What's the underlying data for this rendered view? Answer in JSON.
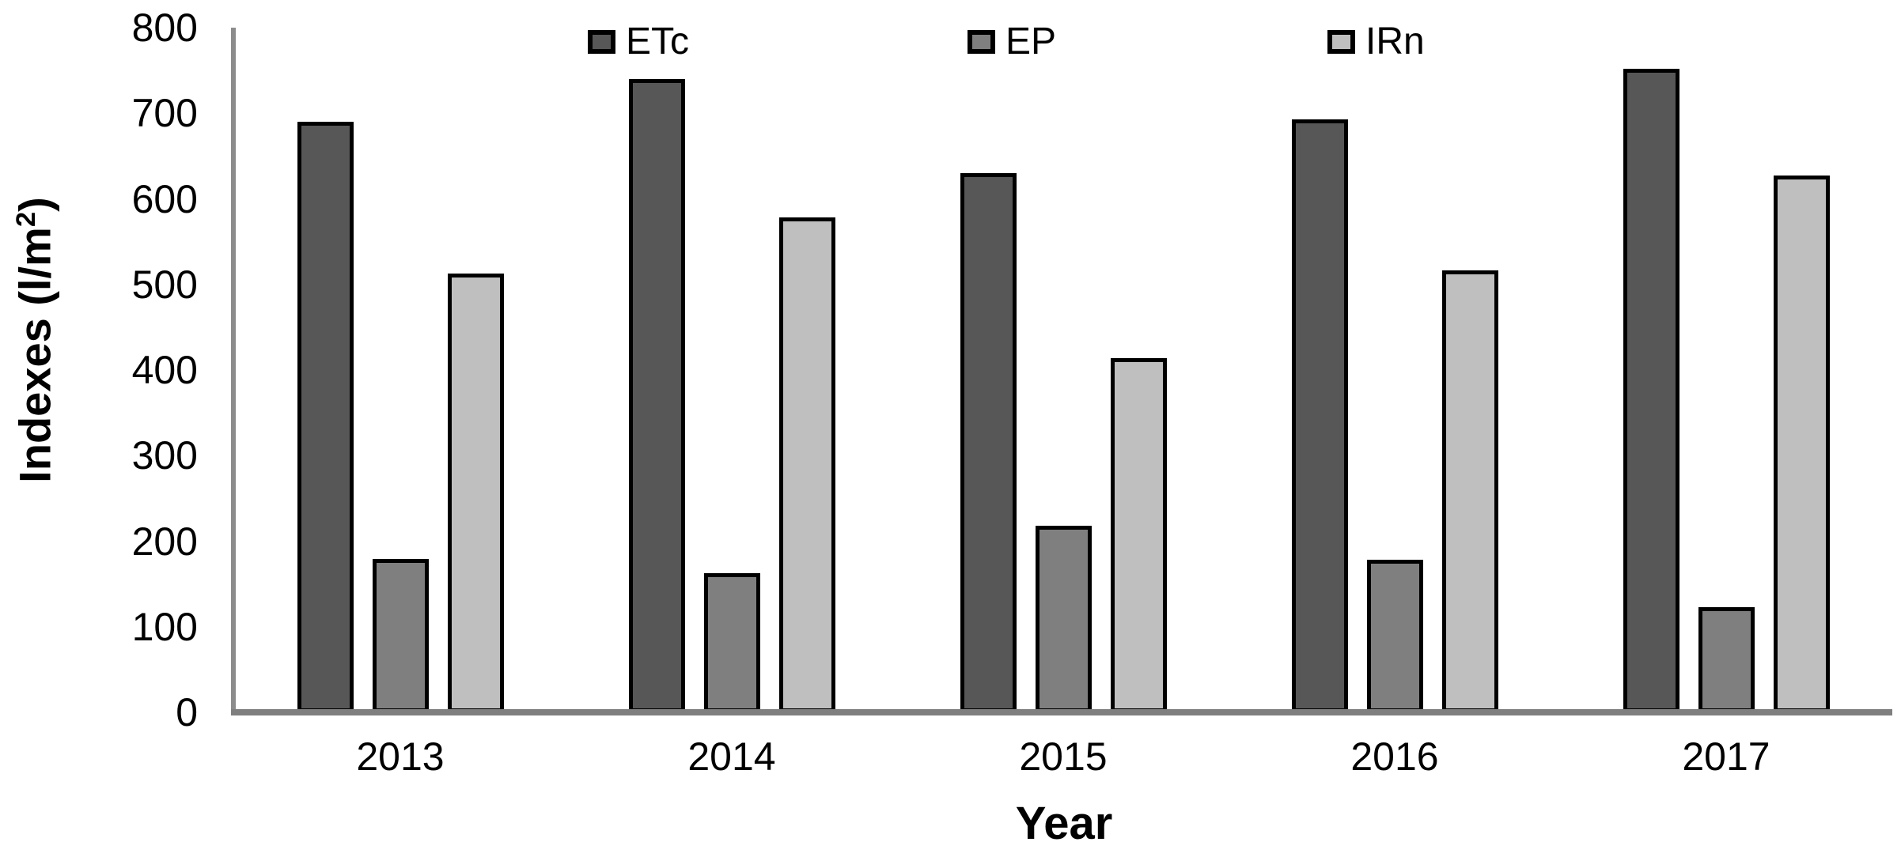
{
  "chart_data": {
    "type": "bar",
    "title": "",
    "categories": [
      "2013",
      "2014",
      "2015",
      "2016",
      "2017"
    ],
    "series": [
      {
        "name": "ETc",
        "color": "#575757",
        "values": [
          690,
          740,
          630,
          693,
          752
        ]
      },
      {
        "name": "EP",
        "color": "#7f7f7f",
        "values": [
          179,
          163,
          218,
          178,
          123
        ]
      },
      {
        "name": "IRn",
        "color": "#bfbfbf",
        "values": [
          513,
          578,
          414,
          516,
          627
        ]
      }
    ],
    "xlabel": "Year",
    "ylabel": "Indexes (l/m²)",
    "ylabel_parts": {
      "base": "Indexes (l/m",
      "sup": "2",
      "close": ")"
    },
    "ylim": [
      0,
      800
    ],
    "yticks": [
      0,
      100,
      200,
      300,
      400,
      500,
      600,
      700,
      800
    ],
    "grid": false,
    "legend_position": "top",
    "bar_border_color": "#000000",
    "axis_color": "#808080"
  }
}
